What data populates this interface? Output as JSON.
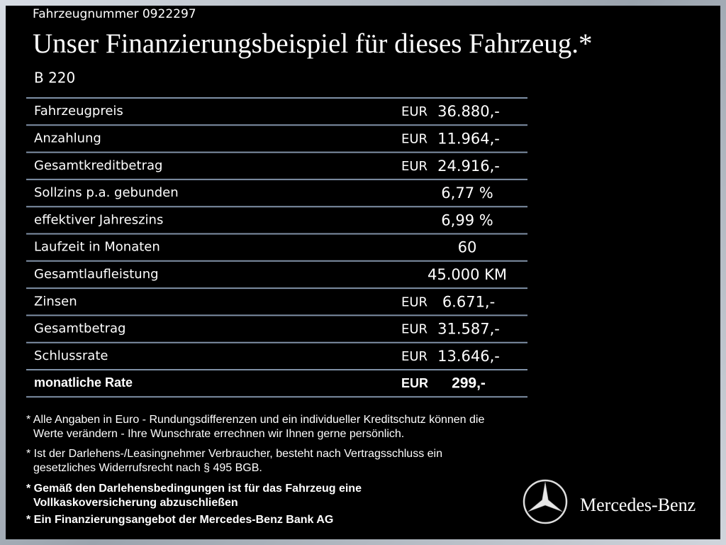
{
  "header": {
    "vehicle_number": "Fahrzeugnummer  0922297",
    "title": "Unser Finanzierungsbeispiel für dieses Fahrzeug.*",
    "model": "B 220"
  },
  "table": {
    "rows": [
      {
        "label": "Fahrzeugpreis",
        "currency": "EUR",
        "value": "36.880,-"
      },
      {
        "label": "Anzahlung",
        "currency": "EUR",
        "value": "11.964,-"
      },
      {
        "label": "Gesamtkreditbetrag",
        "currency": "EUR",
        "value": "24.916,-"
      },
      {
        "label": "Sollzins p.a. gebunden",
        "value": "6,77 %"
      },
      {
        "label": "effektiver Jahreszins",
        "value": "6,99 %"
      },
      {
        "label": "Laufzeit in Monaten",
        "value": "60"
      },
      {
        "label": "Gesamtlaufleistung",
        "value": "45.000 KM"
      },
      {
        "label": "Zinsen",
        "currency": "EUR",
        "value": "6.671,-"
      },
      {
        "label": "Gesamtbetrag",
        "currency": "EUR",
        "value": "31.587,-"
      },
      {
        "label": "Schlussrate",
        "currency": "EUR",
        "value": "13.646,-"
      },
      {
        "label": "monatliche Rate",
        "currency": "EUR",
        "value": "299,-",
        "bold": true
      }
    ]
  },
  "footnotes": [
    {
      "lines": [
        "* Alle Angaben in Euro - Rundungsdifferenzen und ein individueller Kreditschutz können die",
        "Werte verändern - Ihre Wunschrate errechnen wir Ihnen gerne persönlich."
      ]
    },
    {
      "lines": [
        "* Ist der Darlehens-/Leasingnehmer Verbraucher, besteht nach Vertragsschluss ein",
        "gesetzliches Widerrufsrecht nach § 495 BGB."
      ]
    },
    {
      "lines": [
        "* Gemäß den Darlehensbedingungen ist für das Fahrzeug eine",
        "Vollkaskoversicherung abzuschließen"
      ],
      "bold": true
    },
    {
      "lines": [
        "* Ein Finanzierungsangebot der Mercedes-Benz Bank AG"
      ],
      "bold": true
    }
  ],
  "brand": "Mercedes-Benz"
}
